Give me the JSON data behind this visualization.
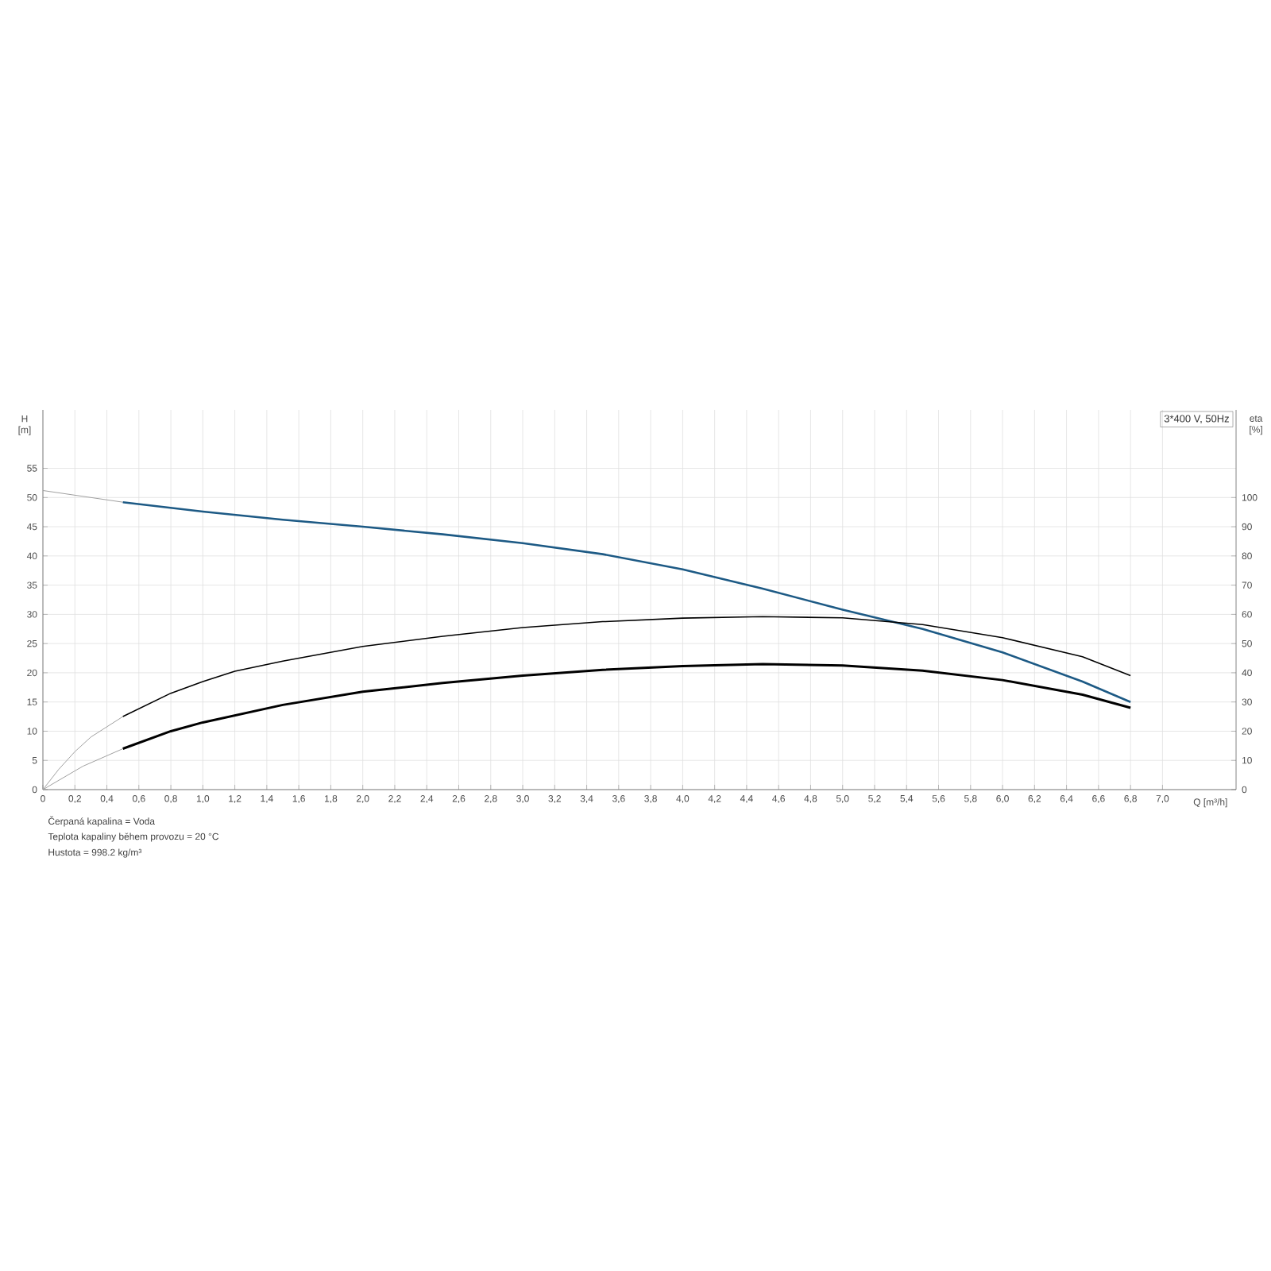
{
  "chart_data": {
    "type": "line",
    "title": "3*400 V, 50Hz",
    "xlabel": "Q [m³/h]",
    "ylabel": "H [m]",
    "y2label": "eta [%]",
    "annotations": [
      "Čerpaná kapalina = Voda",
      "Teplota kapaliny během provozu = 20 °C",
      "Hustota = 998.2 kg/m³"
    ],
    "xlim": [
      0,
      7.46
    ],
    "ylim": [
      0,
      65
    ],
    "y2lim": [
      0,
      130
    ],
    "xticks": [
      0,
      {
        "value": 0.2,
        "label": "0,2"
      },
      {
        "value": 0.4,
        "label": "0,4"
      },
      {
        "value": 0.6,
        "label": "0,6"
      },
      {
        "value": 0.8,
        "label": "0,8"
      },
      {
        "value": 1.0,
        "label": "1,0"
      },
      {
        "value": 1.2,
        "label": "1,2"
      },
      {
        "value": 1.4,
        "label": "1,4"
      },
      {
        "value": 1.6,
        "label": "1,6"
      },
      {
        "value": 1.8,
        "label": "1,8"
      },
      {
        "value": 2.0,
        "label": "2,0"
      },
      {
        "value": 2.2,
        "label": "2,2"
      },
      {
        "value": 2.4,
        "label": "2,4"
      },
      {
        "value": 2.6,
        "label": "2,6"
      },
      {
        "value": 2.8,
        "label": "2,8"
      },
      {
        "value": 3.0,
        "label": "3,0"
      },
      {
        "value": 3.2,
        "label": "3,2"
      },
      {
        "value": 3.4,
        "label": "3,4"
      },
      {
        "value": 3.6,
        "label": "3,6"
      },
      {
        "value": 3.8,
        "label": "3,8"
      },
      {
        "value": 4.0,
        "label": "4,0"
      },
      {
        "value": 4.2,
        "label": "4,2"
      },
      {
        "value": 4.4,
        "label": "4,4"
      },
      {
        "value": 4.6,
        "label": "4,6"
      },
      {
        "value": 4.8,
        "label": "4,8"
      },
      {
        "value": 5.0,
        "label": "5,0"
      },
      {
        "value": 5.2,
        "label": "5,2"
      },
      {
        "value": 5.4,
        "label": "5,4"
      },
      {
        "value": 5.6,
        "label": "5,6"
      },
      {
        "value": 5.8,
        "label": "5,8"
      },
      {
        "value": 6.0,
        "label": "6,0"
      },
      {
        "value": 6.2,
        "label": "6,2"
      },
      {
        "value": 6.4,
        "label": "6,4"
      },
      {
        "value": 6.6,
        "label": "6,6"
      },
      {
        "value": 6.8,
        "label": "6,8"
      },
      {
        "value": 7.0,
        "label": "7,0"
      }
    ],
    "yticks": [
      0,
      5,
      10,
      15,
      20,
      25,
      30,
      35,
      40,
      45,
      50,
      55
    ],
    "y2ticks": [
      0,
      10,
      20,
      30,
      40,
      50,
      60,
      70,
      80,
      90,
      100
    ],
    "grid": true,
    "marker": "none",
    "line_style": "solid",
    "series": [
      {
        "color": "#a0a0a0",
        "x": [
          0,
          0.5
        ],
        "values": [
          51.2,
          49.2
        ]
      },
      {
        "color": "#1d5a85",
        "x": [
          0.5,
          1.0,
          1.5,
          2.0,
          2.5,
          3.0,
          3.5,
          4.0,
          4.5,
          5.0,
          5.5,
          6.0,
          6.5,
          6.8
        ],
        "values": [
          49.2,
          47.6,
          46.2,
          45,
          43.7,
          42.2,
          40.3,
          37.7,
          34.4,
          30.8,
          27.5,
          23.5,
          18.5,
          15
        ]
      },
      {
        "color": "#a0a0a0",
        "axis": "y2",
        "x": [
          0,
          0.1,
          0.2,
          0.3,
          0.4,
          0.5
        ],
        "values": [
          0,
          7,
          13,
          18,
          21.5,
          25
        ]
      },
      {
        "color": "#a0a0a0",
        "axis": "y2",
        "x": [
          0,
          0.25,
          0.5
        ],
        "values": [
          0,
          8,
          14
        ]
      },
      {
        "color": "#000000",
        "axis": "y2",
        "x": [
          0.5,
          0.8,
          1.0,
          1.2,
          1.5,
          2.0,
          2.5,
          3.0,
          3.5,
          4.0,
          4.5,
          5.0,
          5.5,
          6.0,
          6.5,
          6.8
        ],
        "values": [
          25,
          33,
          37,
          40.5,
          44,
          49,
          52.5,
          55.5,
          57.5,
          58.7,
          59.2,
          58.8,
          56.5,
          52,
          45.5,
          39
        ]
      },
      {
        "color": "#000000",
        "axis": "y2",
        "x": [
          0.5,
          0.8,
          1.0,
          1.5,
          2.0,
          2.5,
          3.0,
          3.5,
          4.0,
          4.5,
          5.0,
          5.5,
          6.0,
          6.5,
          6.8
        ],
        "values": [
          14,
          20,
          23,
          29,
          33.5,
          36.5,
          39,
          41,
          42.3,
          43,
          42.5,
          40.7,
          37.5,
          32.5,
          28
        ]
      }
    ]
  }
}
